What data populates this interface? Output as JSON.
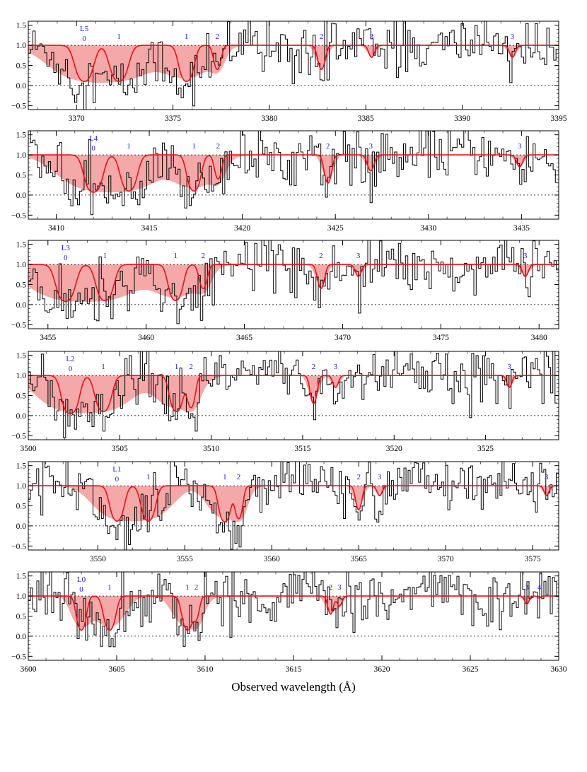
{
  "chart_data": {
    "type": "line",
    "xlabel": "Observed wavelength (Å)",
    "ylim": [
      -0.6,
      1.6
    ],
    "yticks": [
      -0.5,
      0.0,
      0.5,
      1.0,
      1.5
    ],
    "ytick_labels": [
      "−0.5",
      "0.0",
      "0.5",
      "1.0",
      "1.5"
    ],
    "reference_lines": [
      0.0,
      1.0
    ],
    "colors": {
      "data": "#000000",
      "model": "#e8101a",
      "band": "#f5a8a8",
      "labels": "#1a1ad6"
    },
    "panels": [
      {
        "id": "L5",
        "xlim": [
          3367.5,
          3395
        ],
        "xticks": [
          3370,
          3375,
          3380,
          3385,
          3390,
          3395
        ],
        "band_label": "L5",
        "lines": [
          {
            "label": "0",
            "center": 3370.4,
            "width": 0.32,
            "depth": 0.9,
            "ext": 0.55
          },
          {
            "label": "1",
            "center": 3372.2,
            "width": 0.32,
            "depth": 0.9,
            "ext": 0.55
          },
          {
            "label": "1",
            "center": 3375.7,
            "width": 0.26,
            "depth": 0.9,
            "ext": 0.45
          },
          {
            "label": "2",
            "center": 3377.3,
            "width": 0.16,
            "depth": 0.6,
            "ext": 0.15
          },
          {
            "label": "2",
            "center": 3382.7,
            "width": 0.16,
            "depth": 0.6,
            "ext": 0.1
          },
          {
            "label": "3",
            "center": 3385.3,
            "width": 0.14,
            "depth": 0.3,
            "ext": 0.1
          },
          {
            "label": "3",
            "center": 3392.6,
            "width": 0.14,
            "depth": 0.3,
            "ext": 0.1
          }
        ]
      },
      {
        "id": "L4",
        "xlim": [
          3408.5,
          3437
        ],
        "xticks": [
          3410,
          3415,
          3420,
          3425,
          3430,
          3435
        ],
        "band_label": "L4",
        "lines": [
          {
            "label": "0",
            "center": 3412.0,
            "width": 0.32,
            "depth": 0.93,
            "ext": 0.55
          },
          {
            "label": "1",
            "center": 3413.9,
            "width": 0.3,
            "depth": 0.9,
            "ext": 0.55
          },
          {
            "label": "1",
            "center": 3417.4,
            "width": 0.25,
            "depth": 0.9,
            "ext": 0.45
          },
          {
            "label": "2",
            "center": 3418.7,
            "width": 0.16,
            "depth": 0.6,
            "ext": 0.15
          },
          {
            "label": "2",
            "center": 3424.6,
            "width": 0.16,
            "depth": 0.7,
            "ext": 0.1
          },
          {
            "label": "3",
            "center": 3426.9,
            "width": 0.16,
            "depth": 0.4,
            "ext": 0.1
          },
          {
            "label": "3",
            "center": 3434.9,
            "width": 0.15,
            "depth": 0.3,
            "ext": 0.1
          }
        ]
      },
      {
        "id": "L3",
        "xlim": [
          3454,
          3481
        ],
        "xticks": [
          3455,
          3460,
          3465,
          3470,
          3475,
          3480
        ],
        "band_label": "L3",
        "lines": [
          {
            "label": "0",
            "center": 3455.9,
            "width": 0.32,
            "depth": 0.92,
            "ext": 0.6
          },
          {
            "label": "1",
            "center": 3457.9,
            "width": 0.3,
            "depth": 0.9,
            "ext": 0.6
          },
          {
            "label": "1",
            "center": 3461.5,
            "width": 0.25,
            "depth": 0.9,
            "ext": 0.45
          },
          {
            "label": "2",
            "center": 3462.9,
            "width": 0.17,
            "depth": 0.6,
            "ext": 0.15
          },
          {
            "label": "2",
            "center": 3468.9,
            "width": 0.15,
            "depth": 0.6,
            "ext": 0.1
          },
          {
            "label": "3",
            "center": 3470.8,
            "width": 0.14,
            "depth": 0.3,
            "ext": 0.1
          },
          {
            "label": "3",
            "center": 3479.3,
            "width": 0.14,
            "depth": 0.3,
            "ext": 0.1
          }
        ]
      },
      {
        "id": "L2",
        "xlim": [
          3500,
          3529
        ],
        "xticks": [
          3500,
          3505,
          3510,
          3515,
          3520,
          3525
        ],
        "band_label": "L2",
        "lines": [
          {
            "label": "0",
            "center": 3502.3,
            "width": 0.3,
            "depth": 0.95,
            "ext": 0.55
          },
          {
            "label": "1",
            "center": 3504.1,
            "width": 0.3,
            "depth": 0.9,
            "ext": 0.55
          },
          {
            "label": "1",
            "center": 3508.1,
            "width": 0.25,
            "depth": 0.9,
            "ext": 0.4
          },
          {
            "label": "2",
            "center": 3508.9,
            "width": 0.17,
            "depth": 0.8,
            "ext": 0.15
          },
          {
            "label": "2",
            "center": 3515.6,
            "width": 0.15,
            "depth": 0.7,
            "ext": 0.1
          },
          {
            "label": "3",
            "center": 3516.8,
            "width": 0.14,
            "depth": 0.3,
            "ext": 0.1
          },
          {
            "label": "3",
            "center": 3526.3,
            "width": 0.13,
            "depth": 0.3,
            "ext": 0.1
          }
        ]
      },
      {
        "id": "L1",
        "xlim": [
          3546,
          3576.5
        ],
        "xticks": [
          3550,
          3555,
          3560,
          3565,
          3570,
          3575
        ],
        "band_label": "L1",
        "lines": [
          {
            "label": "0",
            "center": 3551.1,
            "width": 0.28,
            "depth": 0.88,
            "ext": 0.45
          },
          {
            "label": "1",
            "center": 3552.9,
            "width": 0.28,
            "depth": 0.88,
            "ext": 0.45
          },
          {
            "label": "1",
            "center": 3557.3,
            "width": 0.24,
            "depth": 0.9,
            "ext": 0.35
          },
          {
            "label": "2",
            "center": 3558.1,
            "width": 0.17,
            "depth": 0.82,
            "ext": 0.15
          },
          {
            "label": "2",
            "center": 3565.0,
            "width": 0.15,
            "depth": 0.6,
            "ext": 0.1
          },
          {
            "label": "3",
            "center": 3566.2,
            "width": 0.14,
            "depth": 0.25,
            "ext": 0.1
          },
          {
            "label": "3",
            "center": 3575.8,
            "width": 0.13,
            "depth": 0.25,
            "ext": 0.1
          }
        ]
      },
      {
        "id": "L0",
        "xlim": [
          3600,
          3630
        ],
        "xticks": [
          3600,
          3605,
          3610,
          3615,
          3620,
          3625,
          3630
        ],
        "band_label": "L0",
        "lines": [
          {
            "label": "0",
            "center": 3603.0,
            "width": 0.2,
            "depth": 0.85,
            "ext": 0.2
          },
          {
            "label": "1",
            "center": 3604.6,
            "width": 0.24,
            "depth": 0.85,
            "ext": 0.3
          },
          {
            "label": "1",
            "center": 3609.0,
            "width": 0.22,
            "depth": 0.85,
            "ext": 0.3
          },
          {
            "label": "2",
            "center": 3609.5,
            "width": 0.15,
            "depth": 0.55,
            "ext": 0.15
          },
          {
            "label": "2",
            "center": 3617.1,
            "width": 0.14,
            "depth": 0.45,
            "ext": 0.15
          },
          {
            "label": "3",
            "center": 3617.6,
            "width": 0.13,
            "depth": 0.25,
            "ext": 0.1
          },
          {
            "label": "3",
            "center": 3628.2,
            "width": 0.12,
            "depth": 0.2,
            "ext": 0.1
          },
          {
            "label": "4",
            "center": 3628.9,
            "width": 0.1,
            "depth": 0.05,
            "ext": 0.05
          }
        ]
      }
    ]
  }
}
